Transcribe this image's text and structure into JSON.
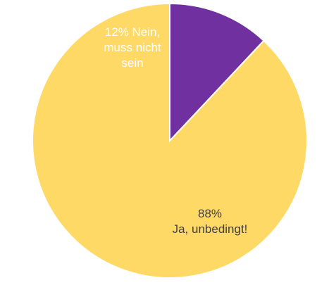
{
  "chart_data": {
    "type": "pie",
    "slices": [
      {
        "label_lines": [
          "12% Nein,",
          "muss nicht",
          "sein"
        ],
        "percent": 12,
        "color": "#7030A0",
        "label_color": "#ffffff"
      },
      {
        "label_lines": [
          "88%",
          "Ja, unbedingt!"
        ],
        "percent": 88,
        "color": "#FFD966",
        "label_color": "#404040"
      }
    ],
    "start_angle": "12 o'clock, clockwise",
    "legend": "none"
  }
}
